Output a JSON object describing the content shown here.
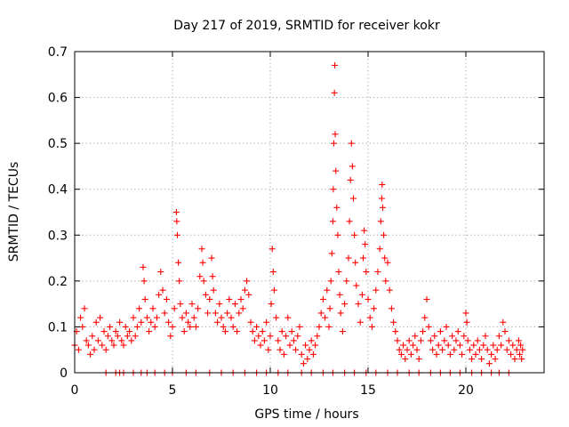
{
  "chart_data": {
    "type": "scatter",
    "title": "Day 217 of 2019, SRMTID for receiver kokr",
    "xlabel": "GPS time / hours",
    "ylabel": "SRMTID / TECUs",
    "xlim": [
      0,
      24
    ],
    "ylim": [
      0,
      0.7
    ],
    "x_ticks": [
      0,
      5,
      10,
      15,
      20
    ],
    "x_tick_labels": [
      "0",
      "5",
      "10",
      "15",
      "20"
    ],
    "y_ticks": [
      0,
      0.1,
      0.2,
      0.3,
      0.4,
      0.5,
      0.6,
      0.7
    ],
    "y_tick_labels": [
      "0",
      "0.1",
      "0.2",
      "0.3",
      "0.4",
      "0.5",
      "0.6",
      "0.7"
    ],
    "grid": true,
    "marker": "+",
    "color": "#ff0000",
    "series": [
      {
        "name": "SRMTID",
        "points": [
          [
            0.0,
            0.06
          ],
          [
            0.1,
            0.09
          ],
          [
            0.2,
            0.05
          ],
          [
            0.3,
            0.12
          ],
          [
            0.4,
            0.1
          ],
          [
            0.5,
            0.14
          ],
          [
            0.6,
            0.07
          ],
          [
            0.7,
            0.06
          ],
          [
            0.8,
            0.04
          ],
          [
            0.9,
            0.08
          ],
          [
            1.0,
            0.05
          ],
          [
            1.1,
            0.11
          ],
          [
            1.2,
            0.07
          ],
          [
            1.3,
            0.12
          ],
          [
            1.4,
            0.06
          ],
          [
            1.5,
            0.09
          ],
          [
            1.6,
            0.05
          ],
          [
            1.7,
            0.08
          ],
          [
            1.8,
            0.1
          ],
          [
            1.9,
            0.07
          ],
          [
            2.0,
            0.06
          ],
          [
            2.1,
            0.09
          ],
          [
            2.2,
            0.08
          ],
          [
            2.3,
            0.11
          ],
          [
            2.4,
            0.07
          ],
          [
            2.5,
            0.06
          ],
          [
            2.6,
            0.1
          ],
          [
            2.7,
            0.08
          ],
          [
            2.8,
            0.09
          ],
          [
            2.9,
            0.07
          ],
          [
            3.0,
            0.12
          ],
          [
            3.1,
            0.08
          ],
          [
            3.2,
            0.1
          ],
          [
            3.3,
            0.14
          ],
          [
            3.4,
            0.11
          ],
          [
            3.5,
            0.23
          ],
          [
            3.55,
            0.2
          ],
          [
            3.6,
            0.16
          ],
          [
            3.7,
            0.12
          ],
          [
            3.8,
            0.09
          ],
          [
            3.9,
            0.11
          ],
          [
            4.0,
            0.14
          ],
          [
            4.1,
            0.1
          ],
          [
            4.2,
            0.12
          ],
          [
            4.3,
            0.17
          ],
          [
            4.4,
            0.22
          ],
          [
            4.5,
            0.18
          ],
          [
            4.6,
            0.13
          ],
          [
            4.7,
            0.16
          ],
          [
            4.8,
            0.11
          ],
          [
            4.9,
            0.08
          ],
          [
            5.0,
            0.1
          ],
          [
            5.1,
            0.14
          ],
          [
            5.2,
            0.35
          ],
          [
            5.22,
            0.33
          ],
          [
            5.25,
            0.3
          ],
          [
            5.3,
            0.24
          ],
          [
            5.35,
            0.2
          ],
          [
            5.4,
            0.15
          ],
          [
            5.5,
            0.12
          ],
          [
            5.6,
            0.09
          ],
          [
            5.7,
            0.13
          ],
          [
            5.8,
            0.11
          ],
          [
            5.9,
            0.1
          ],
          [
            6.0,
            0.15
          ],
          [
            6.1,
            0.12
          ],
          [
            6.2,
            0.1
          ],
          [
            6.3,
            0.14
          ],
          [
            6.4,
            0.21
          ],
          [
            6.5,
            0.27
          ],
          [
            6.55,
            0.24
          ],
          [
            6.6,
            0.2
          ],
          [
            6.7,
            0.17
          ],
          [
            6.8,
            0.13
          ],
          [
            6.9,
            0.16
          ],
          [
            7.0,
            0.25
          ],
          [
            7.05,
            0.21
          ],
          [
            7.1,
            0.18
          ],
          [
            7.2,
            0.13
          ],
          [
            7.3,
            0.11
          ],
          [
            7.4,
            0.15
          ],
          [
            7.5,
            0.12
          ],
          [
            7.6,
            0.1
          ],
          [
            7.7,
            0.09
          ],
          [
            7.8,
            0.13
          ],
          [
            7.9,
            0.16
          ],
          [
            8.0,
            0.12
          ],
          [
            8.1,
            0.1
          ],
          [
            8.2,
            0.15
          ],
          [
            8.3,
            0.09
          ],
          [
            8.4,
            0.13
          ],
          [
            8.5,
            0.16
          ],
          [
            8.6,
            0.14
          ],
          [
            8.7,
            0.18
          ],
          [
            8.8,
            0.2
          ],
          [
            8.9,
            0.17
          ],
          [
            9.0,
            0.11
          ],
          [
            9.1,
            0.09
          ],
          [
            9.2,
            0.07
          ],
          [
            9.3,
            0.1
          ],
          [
            9.4,
            0.08
          ],
          [
            9.5,
            0.06
          ],
          [
            9.6,
            0.09
          ],
          [
            9.7,
            0.07
          ],
          [
            9.8,
            0.11
          ],
          [
            9.9,
            0.05
          ],
          [
            10.0,
            0.08
          ],
          [
            10.05,
            0.15
          ],
          [
            10.1,
            0.27
          ],
          [
            10.15,
            0.22
          ],
          [
            10.2,
            0.18
          ],
          [
            10.3,
            0.12
          ],
          [
            10.4,
            0.07
          ],
          [
            10.5,
            0.05
          ],
          [
            10.6,
            0.09
          ],
          [
            10.7,
            0.04
          ],
          [
            10.8,
            0.08
          ],
          [
            10.9,
            0.12
          ],
          [
            11.0,
            0.06
          ],
          [
            11.1,
            0.09
          ],
          [
            11.2,
            0.07
          ],
          [
            11.3,
            0.05
          ],
          [
            11.4,
            0.08
          ],
          [
            11.5,
            0.1
          ],
          [
            11.6,
            0.04
          ],
          [
            11.7,
            0.02
          ],
          [
            11.8,
            0.06
          ],
          [
            11.9,
            0.03
          ],
          [
            12.0,
            0.05
          ],
          [
            12.1,
            0.07
          ],
          [
            12.2,
            0.04
          ],
          [
            12.3,
            0.06
          ],
          [
            12.4,
            0.08
          ],
          [
            12.5,
            0.1
          ],
          [
            12.6,
            0.13
          ],
          [
            12.7,
            0.16
          ],
          [
            12.8,
            0.12
          ],
          [
            12.9,
            0.18
          ],
          [
            13.0,
            0.1
          ],
          [
            13.05,
            0.14
          ],
          [
            13.1,
            0.2
          ],
          [
            13.15,
            0.26
          ],
          [
            13.2,
            0.33
          ],
          [
            13.22,
            0.4
          ],
          [
            13.25,
            0.5
          ],
          [
            13.28,
            0.61
          ],
          [
            13.3,
            0.67
          ],
          [
            13.32,
            0.52
          ],
          [
            13.35,
            0.44
          ],
          [
            13.4,
            0.36
          ],
          [
            13.45,
            0.3
          ],
          [
            13.5,
            0.22
          ],
          [
            13.55,
            0.17
          ],
          [
            13.6,
            0.13
          ],
          [
            13.7,
            0.09
          ],
          [
            13.8,
            0.15
          ],
          [
            13.9,
            0.2
          ],
          [
            14.0,
            0.25
          ],
          [
            14.05,
            0.33
          ],
          [
            14.1,
            0.42
          ],
          [
            14.15,
            0.5
          ],
          [
            14.2,
            0.45
          ],
          [
            14.25,
            0.38
          ],
          [
            14.3,
            0.3
          ],
          [
            14.35,
            0.24
          ],
          [
            14.4,
            0.19
          ],
          [
            14.5,
            0.15
          ],
          [
            14.6,
            0.11
          ],
          [
            14.7,
            0.17
          ],
          [
            14.75,
            0.25
          ],
          [
            14.8,
            0.31
          ],
          [
            14.85,
            0.28
          ],
          [
            14.9,
            0.22
          ],
          [
            15.0,
            0.16
          ],
          [
            15.1,
            0.12
          ],
          [
            15.2,
            0.1
          ],
          [
            15.3,
            0.14
          ],
          [
            15.4,
            0.18
          ],
          [
            15.5,
            0.22
          ],
          [
            15.6,
            0.27
          ],
          [
            15.65,
            0.33
          ],
          [
            15.7,
            0.38
          ],
          [
            15.72,
            0.41
          ],
          [
            15.75,
            0.36
          ],
          [
            15.8,
            0.3
          ],
          [
            15.85,
            0.25
          ],
          [
            15.9,
            0.2
          ],
          [
            16.0,
            0.24
          ],
          [
            16.1,
            0.18
          ],
          [
            16.2,
            0.14
          ],
          [
            16.3,
            0.11
          ],
          [
            16.4,
            0.09
          ],
          [
            16.5,
            0.07
          ],
          [
            16.6,
            0.05
          ],
          [
            16.7,
            0.04
          ],
          [
            16.8,
            0.06
          ],
          [
            16.9,
            0.03
          ],
          [
            17.0,
            0.05
          ],
          [
            17.1,
            0.07
          ],
          [
            17.2,
            0.04
          ],
          [
            17.3,
            0.06
          ],
          [
            17.4,
            0.08
          ],
          [
            17.5,
            0.05
          ],
          [
            17.6,
            0.03
          ],
          [
            17.7,
            0.07
          ],
          [
            17.8,
            0.09
          ],
          [
            17.9,
            0.12
          ],
          [
            18.0,
            0.16
          ],
          [
            18.1,
            0.1
          ],
          [
            18.2,
            0.07
          ],
          [
            18.3,
            0.05
          ],
          [
            18.4,
            0.08
          ],
          [
            18.5,
            0.04
          ],
          [
            18.6,
            0.06
          ],
          [
            18.7,
            0.09
          ],
          [
            18.8,
            0.05
          ],
          [
            18.9,
            0.07
          ],
          [
            19.0,
            0.1
          ],
          [
            19.1,
            0.06
          ],
          [
            19.2,
            0.04
          ],
          [
            19.3,
            0.08
          ],
          [
            19.4,
            0.05
          ],
          [
            19.5,
            0.07
          ],
          [
            19.6,
            0.09
          ],
          [
            19.7,
            0.06
          ],
          [
            19.8,
            0.04
          ],
          [
            19.9,
            0.08
          ],
          [
            20.0,
            0.13
          ],
          [
            20.05,
            0.11
          ],
          [
            20.1,
            0.07
          ],
          [
            20.2,
            0.05
          ],
          [
            20.3,
            0.03
          ],
          [
            20.4,
            0.06
          ],
          [
            20.5,
            0.04
          ],
          [
            20.6,
            0.07
          ],
          [
            20.7,
            0.05
          ],
          [
            20.8,
            0.03
          ],
          [
            20.9,
            0.06
          ],
          [
            21.0,
            0.08
          ],
          [
            21.1,
            0.05
          ],
          [
            21.2,
            0.02
          ],
          [
            21.3,
            0.04
          ],
          [
            21.4,
            0.06
          ],
          [
            21.5,
            0.03
          ],
          [
            21.6,
            0.05
          ],
          [
            21.7,
            0.08
          ],
          [
            21.8,
            0.06
          ],
          [
            21.9,
            0.11
          ],
          [
            22.0,
            0.09
          ],
          [
            22.1,
            0.05
          ],
          [
            22.2,
            0.07
          ],
          [
            22.3,
            0.04
          ],
          [
            22.4,
            0.06
          ],
          [
            22.5,
            0.03
          ],
          [
            22.6,
            0.05
          ],
          [
            22.7,
            0.07
          ],
          [
            22.75,
            0.04
          ],
          [
            22.8,
            0.06
          ],
          [
            22.85,
            0.03
          ],
          [
            22.9,
            0.05
          ]
        ]
      }
    ],
    "baseline_zero_x": [
      1.6,
      2.1,
      2.3,
      2.5,
      3.0,
      3.4,
      3.7,
      4.1,
      4.6,
      5.0,
      5.7,
      6.2,
      6.9,
      7.5,
      8.1,
      8.7,
      9.3,
      9.8,
      10.4,
      10.9,
      11.6,
      12.1,
      12.7,
      13.2,
      13.8,
      14.3,
      14.9,
      15.4,
      16.0,
      16.5,
      17.1,
      17.6,
      18.2,
      18.7,
      19.2,
      19.7,
      20.3,
      20.8,
      21.3,
      21.7,
      22.2
    ]
  }
}
